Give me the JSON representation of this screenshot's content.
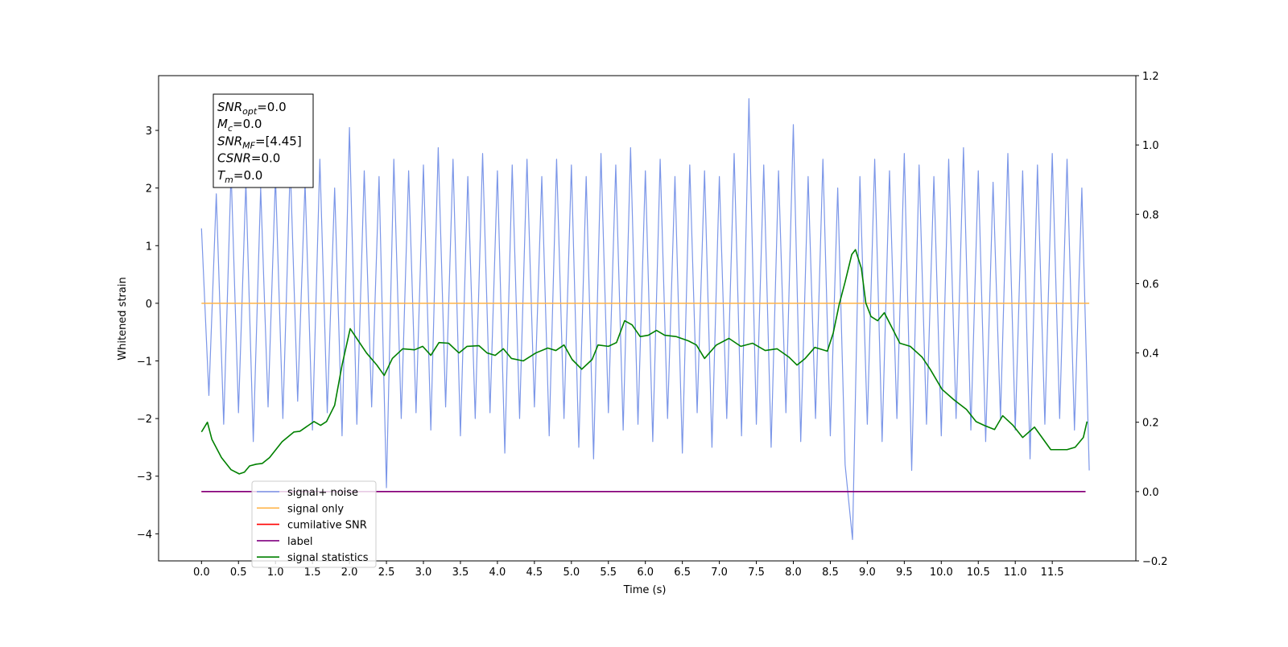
{
  "chart_data": {
    "type": "line",
    "xlabel": "Time (s)",
    "ylabel": "Whitened strain",
    "xlim": [
      -0.58,
      12.63
    ],
    "ylim": [
      -4.47,
      3.95
    ],
    "y2lim": [
      -0.2,
      1.2
    ],
    "xticks": [
      {
        "value": 0,
        "label": "0.0"
      },
      0.5,
      {
        "value": 1,
        "label": "1.0"
      },
      1.5,
      {
        "value": 2,
        "label": "2.0"
      },
      2.5,
      {
        "value": 3,
        "label": "3.0"
      },
      3.5,
      {
        "value": 4,
        "label": "4.0"
      },
      4.5,
      {
        "value": 5,
        "label": "5.0"
      },
      5.5,
      {
        "value": 6,
        "label": "6.0"
      },
      6.5,
      {
        "value": 7,
        "label": "7.0"
      },
      7.5,
      {
        "value": 8,
        "label": "8.0"
      },
      8.5,
      {
        "value": 9,
        "label": "9.0"
      },
      9.5,
      {
        "value": 10,
        "label": "10.0"
      },
      10.5,
      {
        "value": 11,
        "label": "11.0"
      },
      11.5
    ],
    "yticks": [
      {
        "value": -4,
        "label": "−4"
      },
      {
        "value": -3,
        "label": "−3"
      },
      {
        "value": -2,
        "label": "−2"
      },
      {
        "value": -1,
        "label": "−1"
      },
      0,
      1,
      2,
      3
    ],
    "y2ticks": [
      {
        "value": -0.2,
        "label": "−0.2"
      },
      {
        "value": 0,
        "label": "0.0"
      },
      0.2,
      0.4,
      0.6,
      0.8,
      {
        "value": 1,
        "label": "1.0"
      },
      1.2
    ],
    "legend": "lower left",
    "annotation": [
      {
        "symbol": "SNR",
        "sub": "opt",
        "text": "=0.0"
      },
      {
        "symbol": "M",
        "sub": "c",
        "text": "=0.0"
      },
      {
        "symbol": "SNR",
        "sub": "MF",
        "text": "=[4.45]"
      },
      {
        "symbol": "CSNR",
        "sub": null,
        "text": "=0.0"
      },
      {
        "symbol": "T",
        "sub": "m",
        "text": "=0.0"
      }
    ],
    "series": [
      {
        "name": "signal+ noise",
        "color": "#7b96e8",
        "axis": "y",
        "x": [
          0.0,
          0.1,
          0.2,
          0.3,
          0.4,
          0.5,
          0.6,
          0.7,
          0.8,
          0.9,
          1.0,
          1.1,
          1.2,
          1.3,
          1.4,
          1.5,
          1.6,
          1.7,
          1.8,
          1.9,
          2.0,
          2.1,
          2.2,
          2.3,
          2.4,
          2.5,
          2.6,
          2.7,
          2.8,
          2.9,
          3.0,
          3.1,
          3.2,
          3.3,
          3.4,
          3.5,
          3.6,
          3.7,
          3.8,
          3.9,
          4.0,
          4.1,
          4.2,
          4.3,
          4.4,
          4.5,
          4.6,
          4.7,
          4.8,
          4.9,
          5.0,
          5.1,
          5.2,
          5.3,
          5.4,
          5.5,
          5.6,
          5.7,
          5.8,
          5.9,
          6.0,
          6.1,
          6.2,
          6.3,
          6.4,
          6.5,
          6.6,
          6.7,
          6.8,
          6.9,
          7.0,
          7.1,
          7.2,
          7.3,
          7.4,
          7.5,
          7.6,
          7.7,
          7.8,
          7.9,
          8.0,
          8.1,
          8.2,
          8.3,
          8.4,
          8.5,
          8.6,
          8.7,
          8.8,
          8.9,
          9.0,
          9.1,
          9.2,
          9.3,
          9.4,
          9.5,
          9.6,
          9.7,
          9.8,
          9.9,
          10.0,
          10.1,
          10.2,
          10.3,
          10.4,
          10.5,
          10.6,
          10.7,
          10.8,
          10.9,
          11.0,
          11.1,
          11.2,
          11.3,
          11.4,
          11.5,
          11.6,
          11.7,
          11.8,
          11.9,
          12.0
        ],
        "values": [
          1.3,
          -1.6,
          1.9,
          -2.1,
          2.3,
          -1.9,
          2.1,
          -2.4,
          2.0,
          -1.8,
          2.2,
          -2.0,
          2.4,
          -1.7,
          2.1,
          -2.2,
          2.5,
          -1.9,
          2.0,
          -2.3,
          3.05,
          -2.1,
          2.3,
          -1.8,
          2.2,
          -3.2,
          2.5,
          -2.0,
          2.3,
          -1.9,
          2.4,
          -2.2,
          2.7,
          -1.8,
          2.5,
          -2.3,
          2.2,
          -2.0,
          2.6,
          -1.9,
          2.3,
          -2.6,
          2.4,
          -2.0,
          2.5,
          -1.8,
          2.2,
          -2.3,
          2.5,
          -2.0,
          2.4,
          -2.5,
          2.2,
          -2.7,
          2.6,
          -1.9,
          2.4,
          -2.2,
          2.7,
          -2.1,
          2.3,
          -2.4,
          2.5,
          -2.0,
          2.2,
          -2.6,
          2.4,
          -1.9,
          2.3,
          -2.5,
          2.2,
          -2.0,
          2.6,
          -2.3,
          3.55,
          -2.1,
          2.4,
          -2.5,
          2.3,
          -1.9,
          3.1,
          -2.4,
          2.2,
          -2.0,
          2.5,
          -2.3,
          2.0,
          -2.8,
          -4.1,
          2.2,
          -2.1,
          2.5,
          -2.4,
          2.3,
          -2.0,
          2.6,
          -2.9,
          2.4,
          -2.1,
          2.2,
          -2.3,
          2.5,
          -2.0,
          2.7,
          -2.2,
          2.3,
          -2.4,
          2.1,
          -2.0,
          2.6,
          -2.2,
          2.3,
          -2.7,
          2.4,
          -2.1,
          2.6,
          -2.0,
          2.5,
          -2.2,
          2.0,
          -2.9
        ]
      },
      {
        "name": "signal only",
        "color": "#ffb347",
        "axis": "y",
        "x": [
          0,
          12
        ],
        "values": [
          0,
          0
        ]
      },
      {
        "name": "cumilative SNR",
        "color": "#ff0000",
        "axis": "y2",
        "x": [
          0,
          11.95
        ],
        "values": [
          0,
          0
        ]
      },
      {
        "name": "label",
        "color": "#800080",
        "axis": "y2",
        "x": [
          0,
          11.95
        ],
        "values": [
          0,
          0
        ]
      },
      {
        "name": "signal statistics",
        "color": "#008000",
        "axis": "y2",
        "x": [
          0,
          0.08,
          0.14,
          0.27,
          0.4,
          0.51,
          0.58,
          0.65,
          0.74,
          0.82,
          0.92,
          1.09,
          1.25,
          1.33,
          1.52,
          1.61,
          1.69,
          1.8,
          1.9,
          2.01,
          2.12,
          2.23,
          2.37,
          2.47,
          2.58,
          2.72,
          2.88,
          2.99,
          3.1,
          3.21,
          3.34,
          3.48,
          3.59,
          3.75,
          3.86,
          3.97,
          4.08,
          4.19,
          4.35,
          4.52,
          4.68,
          4.79,
          4.9,
          5.01,
          5.14,
          5.28,
          5.36,
          5.5,
          5.61,
          5.72,
          5.82,
          5.93,
          6.04,
          6.15,
          6.26,
          6.42,
          6.58,
          6.69,
          6.8,
          6.96,
          7.13,
          7.29,
          7.45,
          7.62,
          7.78,
          7.94,
          8.05,
          8.16,
          8.29,
          8.46,
          8.54,
          8.62,
          8.7,
          8.79,
          8.84,
          8.92,
          8.98,
          9.05,
          9.14,
          9.23,
          9.34,
          9.44,
          9.58,
          9.74,
          9.85,
          10.01,
          10.17,
          10.34,
          10.47,
          10.58,
          10.72,
          10.83,
          10.97,
          11.1,
          11.26,
          11.48,
          11.7,
          11.81,
          11.92,
          11.97
        ],
        "values": [
          0.172,
          0.2,
          0.151,
          0.098,
          0.063,
          0.051,
          0.056,
          0.074,
          0.079,
          0.081,
          0.098,
          0.144,
          0.172,
          0.174,
          0.202,
          0.191,
          0.202,
          0.249,
          0.365,
          0.47,
          0.435,
          0.4,
          0.365,
          0.335,
          0.384,
          0.412,
          0.409,
          0.419,
          0.393,
          0.43,
          0.428,
          0.4,
          0.419,
          0.421,
          0.4,
          0.393,
          0.412,
          0.384,
          0.377,
          0.4,
          0.414,
          0.407,
          0.423,
          0.381,
          0.353,
          0.381,
          0.423,
          0.419,
          0.43,
          0.493,
          0.481,
          0.447,
          0.451,
          0.465,
          0.451,
          0.447,
          0.435,
          0.423,
          0.384,
          0.423,
          0.442,
          0.419,
          0.428,
          0.407,
          0.412,
          0.388,
          0.365,
          0.384,
          0.416,
          0.405,
          0.458,
          0.54,
          0.605,
          0.684,
          0.698,
          0.644,
          0.544,
          0.505,
          0.493,
          0.516,
          0.47,
          0.428,
          0.419,
          0.388,
          0.353,
          0.295,
          0.265,
          0.237,
          0.202,
          0.191,
          0.179,
          0.219,
          0.191,
          0.156,
          0.186,
          0.121,
          0.121,
          0.128,
          0.156,
          0.202
        ]
      }
    ]
  }
}
